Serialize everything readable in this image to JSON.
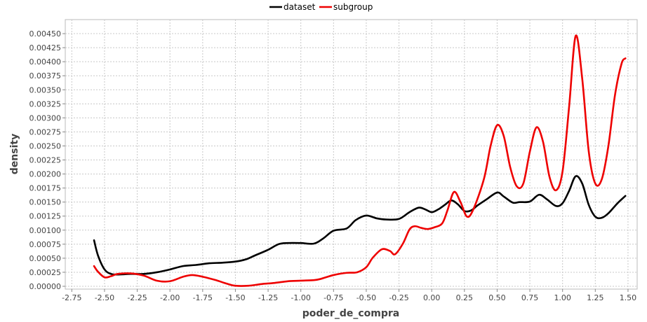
{
  "chart_data": {
    "type": "line",
    "title": "",
    "xlabel": "poder_de_compra",
    "ylabel": "density",
    "xlim": [
      -2.8,
      1.57
    ],
    "ylim": [
      -5e-05,
      0.00475
    ],
    "xticks": [
      "-2.75",
      "-2.50",
      "-2.25",
      "-2.00",
      "-1.75",
      "-1.50",
      "-1.25",
      "-1.00",
      "-0.75",
      "-0.50",
      "-0.25",
      "0.00",
      "0.25",
      "0.50",
      "0.75",
      "1.00",
      "1.25",
      "1.50"
    ],
    "yticks": [
      "0.00000",
      "0.00025",
      "0.00050",
      "0.00075",
      "0.00100",
      "0.00125",
      "0.00150",
      "0.00175",
      "0.00200",
      "0.00225",
      "0.00250",
      "0.00275",
      "0.00300",
      "0.00325",
      "0.00350",
      "0.00375",
      "0.00400",
      "0.00425",
      "0.00450"
    ],
    "grid": true,
    "legend": "top-center",
    "series": [
      {
        "name": "dataset",
        "color": "#000000",
        "points": [
          [
            -2.58,
            0.00082
          ],
          [
            -2.55,
            0.00055
          ],
          [
            -2.5,
            0.0003
          ],
          [
            -2.45,
            0.00022
          ],
          [
            -2.4,
            0.00021
          ],
          [
            -2.3,
            0.00022
          ],
          [
            -2.2,
            0.00022
          ],
          [
            -2.1,
            0.00025
          ],
          [
            -2.0,
            0.0003
          ],
          [
            -1.9,
            0.00036
          ],
          [
            -1.8,
            0.00038
          ],
          [
            -1.7,
            0.00041
          ],
          [
            -1.6,
            0.00042
          ],
          [
            -1.5,
            0.00044
          ],
          [
            -1.42,
            0.00048
          ],
          [
            -1.35,
            0.00055
          ],
          [
            -1.25,
            0.00065
          ],
          [
            -1.17,
            0.00075
          ],
          [
            -1.1,
            0.00077
          ],
          [
            -1.0,
            0.00077
          ],
          [
            -0.9,
            0.00076
          ],
          [
            -0.83,
            0.00085
          ],
          [
            -0.75,
            0.00099
          ],
          [
            -0.65,
            0.00103
          ],
          [
            -0.58,
            0.00118
          ],
          [
            -0.5,
            0.00126
          ],
          [
            -0.42,
            0.00121
          ],
          [
            -0.35,
            0.00119
          ],
          [
            -0.25,
            0.0012
          ],
          [
            -0.17,
            0.00132
          ],
          [
            -0.1,
            0.0014
          ],
          [
            -0.05,
            0.00137
          ],
          [
            0.0,
            0.00132
          ],
          [
            0.05,
            0.00137
          ],
          [
            0.1,
            0.00145
          ],
          [
            0.15,
            0.00153
          ],
          [
            0.2,
            0.00146
          ],
          [
            0.25,
            0.00134
          ],
          [
            0.3,
            0.00135
          ],
          [
            0.35,
            0.00144
          ],
          [
            0.42,
            0.00155
          ],
          [
            0.5,
            0.00167
          ],
          [
            0.55,
            0.0016
          ],
          [
            0.62,
            0.00149
          ],
          [
            0.67,
            0.0015
          ],
          [
            0.75,
            0.00151
          ],
          [
            0.82,
            0.00163
          ],
          [
            0.88,
            0.00155
          ],
          [
            0.95,
            0.00143
          ],
          [
            1.0,
            0.00148
          ],
          [
            1.05,
            0.0017
          ],
          [
            1.1,
            0.00196
          ],
          [
            1.15,
            0.00183
          ],
          [
            1.2,
            0.00145
          ],
          [
            1.25,
            0.00124
          ],
          [
            1.3,
            0.00122
          ],
          [
            1.35,
            0.0013
          ],
          [
            1.42,
            0.00148
          ],
          [
            1.48,
            0.00161
          ]
        ]
      },
      {
        "name": "subgroup",
        "color": "#ee0000",
        "points": [
          [
            -2.58,
            0.00036
          ],
          [
            -2.55,
            0.00026
          ],
          [
            -2.5,
            0.00016
          ],
          [
            -2.45,
            0.00018
          ],
          [
            -2.4,
            0.00022
          ],
          [
            -2.3,
            0.00023
          ],
          [
            -2.2,
            0.00019
          ],
          [
            -2.1,
            0.0001
          ],
          [
            -2.0,
            9e-05
          ],
          [
            -1.9,
            0.00017
          ],
          [
            -1.83,
            0.0002
          ],
          [
            -1.75,
            0.00017
          ],
          [
            -1.65,
            0.00011
          ],
          [
            -1.57,
            5e-05
          ],
          [
            -1.5,
            1e-05
          ],
          [
            -1.4,
            1e-05
          ],
          [
            -1.3,
            4e-05
          ],
          [
            -1.2,
            6e-05
          ],
          [
            -1.1,
            9e-05
          ],
          [
            -1.0,
            0.0001
          ],
          [
            -0.9,
            0.00011
          ],
          [
            -0.85,
            0.00013
          ],
          [
            -0.75,
            0.0002
          ],
          [
            -0.65,
            0.00024
          ],
          [
            -0.57,
            0.00025
          ],
          [
            -0.5,
            0.00034
          ],
          [
            -0.45,
            0.00051
          ],
          [
            -0.38,
            0.00066
          ],
          [
            -0.32,
            0.00063
          ],
          [
            -0.28,
            0.00057
          ],
          [
            -0.22,
            0.00076
          ],
          [
            -0.17,
            0.00101
          ],
          [
            -0.13,
            0.00107
          ],
          [
            -0.08,
            0.00104
          ],
          [
            -0.03,
            0.00102
          ],
          [
            0.02,
            0.00105
          ],
          [
            0.08,
            0.00112
          ],
          [
            0.12,
            0.00135
          ],
          [
            0.17,
            0.00168
          ],
          [
            0.22,
            0.0015
          ],
          [
            0.27,
            0.00124
          ],
          [
            0.32,
            0.00138
          ],
          [
            0.4,
            0.00192
          ],
          [
            0.45,
            0.0025
          ],
          [
            0.5,
            0.00287
          ],
          [
            0.55,
            0.00268
          ],
          [
            0.6,
            0.00212
          ],
          [
            0.65,
            0.00178
          ],
          [
            0.7,
            0.00183
          ],
          [
            0.75,
            0.0024
          ],
          [
            0.8,
            0.00283
          ],
          [
            0.85,
            0.00258
          ],
          [
            0.9,
            0.00195
          ],
          [
            0.95,
            0.00171
          ],
          [
            1.0,
            0.00205
          ],
          [
            1.05,
            0.0032
          ],
          [
            1.1,
            0.00446
          ],
          [
            1.15,
            0.0037
          ],
          [
            1.2,
            0.0024
          ],
          [
            1.25,
            0.00183
          ],
          [
            1.3,
            0.00191
          ],
          [
            1.35,
            0.0025
          ],
          [
            1.4,
            0.0034
          ],
          [
            1.45,
            0.00396
          ],
          [
            1.48,
            0.00406
          ]
        ]
      }
    ]
  }
}
